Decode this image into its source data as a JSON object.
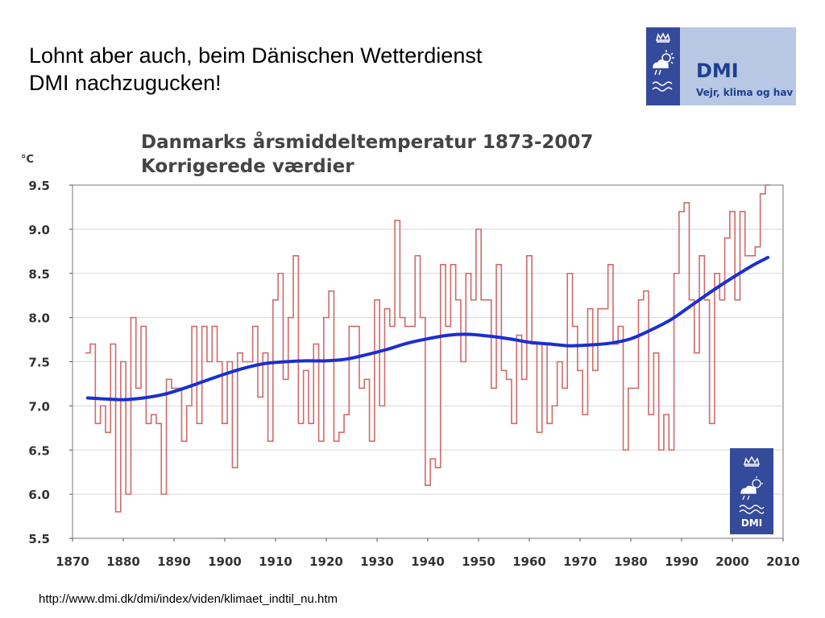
{
  "slide": {
    "title_line1": "Lohnt aber auch, beim Dänischen Wetterdienst",
    "title_line2": "DMI nachzugucken!",
    "source_url": "http://www.dmi.dk/dmi/index/viden/klimaet_indtil_nu.htm"
  },
  "logo": {
    "brand": "DMI",
    "tagline": "Vejr, klima og hav",
    "small_brand": "DMI",
    "bg_color": "#344a9a",
    "panel_color": "#b8c7e4",
    "text_color": "#1f3f8f"
  },
  "chart_data": {
    "type": "line",
    "title_line1": "Danmarks årsmiddeltemperatur 1873-2007",
    "title_line2": "Korrigerede værdier",
    "ylabel": "°C",
    "xlabel": "",
    "xlim": [
      1870,
      2010
    ],
    "ylim": [
      5.5,
      9.5
    ],
    "x_ticks": [
      1870,
      1880,
      1890,
      1900,
      1910,
      1920,
      1930,
      1940,
      1950,
      1960,
      1970,
      1980,
      1990,
      2000,
      2010
    ],
    "y_ticks": [
      "5.5",
      "6.0",
      "6.5",
      "7.0",
      "7.5",
      "8.0",
      "8.5",
      "9.0",
      "9.5"
    ],
    "grid": true,
    "series": [
      {
        "style": "step",
        "color": "#d06a6a",
        "x": [
          1873,
          1874,
          1875,
          1876,
          1877,
          1878,
          1879,
          1880,
          1881,
          1882,
          1883,
          1884,
          1885,
          1886,
          1887,
          1888,
          1889,
          1890,
          1891,
          1892,
          1893,
          1894,
          1895,
          1896,
          1897,
          1898,
          1899,
          1900,
          1901,
          1902,
          1903,
          1904,
          1905,
          1906,
          1907,
          1908,
          1909,
          1910,
          1911,
          1912,
          1913,
          1914,
          1915,
          1916,
          1917,
          1918,
          1919,
          1920,
          1921,
          1922,
          1923,
          1924,
          1925,
          1926,
          1927,
          1928,
          1929,
          1930,
          1931,
          1932,
          1933,
          1934,
          1935,
          1936,
          1937,
          1938,
          1939,
          1940,
          1941,
          1942,
          1943,
          1944,
          1945,
          1946,
          1947,
          1948,
          1949,
          1950,
          1951,
          1952,
          1953,
          1954,
          1955,
          1956,
          1957,
          1958,
          1959,
          1960,
          1961,
          1962,
          1963,
          1964,
          1965,
          1966,
          1967,
          1968,
          1969,
          1970,
          1971,
          1972,
          1973,
          1974,
          1975,
          1976,
          1977,
          1978,
          1979,
          1980,
          1981,
          1982,
          1983,
          1984,
          1985,
          1986,
          1987,
          1988,
          1989,
          1990,
          1991,
          1992,
          1993,
          1994,
          1995,
          1996,
          1997,
          1998,
          1999,
          2000,
          2001,
          2002,
          2003,
          2004,
          2005,
          2006,
          2007
        ],
        "values": [
          7.6,
          7.7,
          6.8,
          7.0,
          6.7,
          7.7,
          5.8,
          7.5,
          6.0,
          8.0,
          7.2,
          7.9,
          6.8,
          6.9,
          6.8,
          6.0,
          7.3,
          7.2,
          7.2,
          6.6,
          7.0,
          7.9,
          6.8,
          7.9,
          7.5,
          7.9,
          7.5,
          6.8,
          7.5,
          6.3,
          7.6,
          7.5,
          7.5,
          7.9,
          7.1,
          7.6,
          6.6,
          8.2,
          8.5,
          7.3,
          8.0,
          8.7,
          6.8,
          7.4,
          6.8,
          7.7,
          6.6,
          8.0,
          8.3,
          6.6,
          6.7,
          6.9,
          7.9,
          7.9,
          7.2,
          7.3,
          6.6,
          8.2,
          7.0,
          8.1,
          7.9,
          9.1,
          8.0,
          7.9,
          7.9,
          8.7,
          8.0,
          6.1,
          6.4,
          6.3,
          8.6,
          7.9,
          8.6,
          8.2,
          7.5,
          8.5,
          8.2,
          9.0,
          8.2,
          8.2,
          7.2,
          8.6,
          7.4,
          7.3,
          6.8,
          7.8,
          7.3,
          8.7,
          7.7,
          6.7,
          7.7,
          6.8,
          7.0,
          7.5,
          7.2,
          8.5,
          7.9,
          7.4,
          6.9,
          8.1,
          7.4,
          8.1,
          8.1,
          8.6,
          7.7,
          7.9,
          6.5,
          7.2,
          7.2,
          8.2,
          8.3,
          6.9,
          7.6,
          6.5,
          6.9,
          6.5,
          8.5,
          9.2,
          9.3,
          8.2,
          7.6,
          8.7,
          8.2,
          6.8,
          8.5,
          8.2,
          8.9,
          9.2,
          8.2,
          9.2,
          8.7,
          8.7,
          8.8,
          9.4,
          9.5
        ]
      },
      {
        "style": "smooth",
        "color": "#1a2fd1",
        "x": [
          1873,
          1876,
          1880,
          1884,
          1888,
          1892,
          1896,
          1900,
          1904,
          1908,
          1912,
          1916,
          1920,
          1924,
          1928,
          1932,
          1936,
          1940,
          1944,
          1948,
          1952,
          1956,
          1960,
          1964,
          1968,
          1972,
          1976,
          1980,
          1984,
          1988,
          1992,
          1996,
          2000,
          2004,
          2007
        ],
        "values": [
          7.09,
          7.08,
          7.07,
          7.09,
          7.13,
          7.2,
          7.28,
          7.36,
          7.43,
          7.48,
          7.5,
          7.51,
          7.51,
          7.53,
          7.58,
          7.64,
          7.71,
          7.76,
          7.8,
          7.81,
          7.79,
          7.76,
          7.72,
          7.7,
          7.68,
          7.69,
          7.71,
          7.76,
          7.86,
          7.98,
          8.14,
          8.3,
          8.45,
          8.59,
          8.68
        ]
      }
    ]
  }
}
